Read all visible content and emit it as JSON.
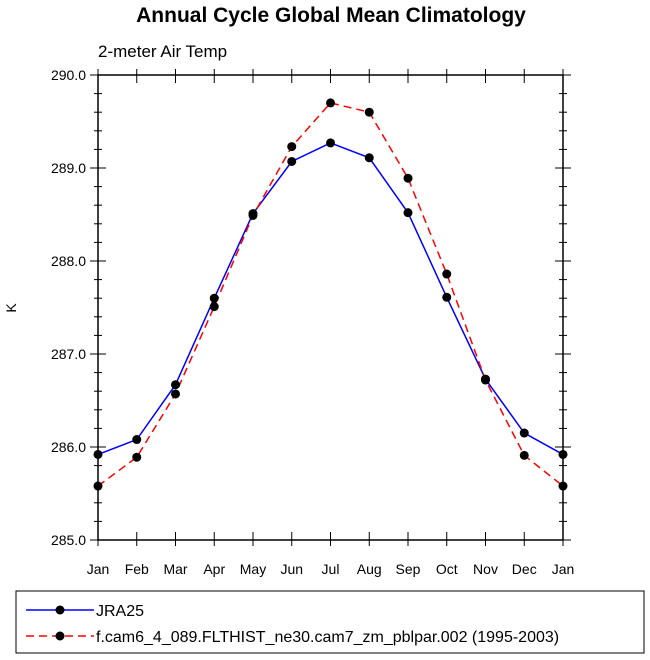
{
  "chart_data": {
    "type": "line",
    "title": "Annual Cycle Global Mean Climatology",
    "subtitle": "2-meter Air Temp",
    "xlabel": "",
    "ylabel": "K",
    "categories": [
      "Jan",
      "Feb",
      "Mar",
      "Apr",
      "May",
      "Jun",
      "Jul",
      "Aug",
      "Sep",
      "Oct",
      "Nov",
      "Dec",
      "Jan"
    ],
    "ylim": [
      285.0,
      290.0
    ],
    "yticks": [
      "285.0",
      "286.0",
      "287.0",
      "288.0",
      "289.0",
      "290.0"
    ],
    "grid": false,
    "legend_position": "bottom",
    "series": [
      {
        "name": "JRA25",
        "color": "#0000ff",
        "dash": "solid",
        "marker": "filled-circle",
        "values": [
          285.92,
          286.08,
          286.67,
          287.6,
          288.51,
          289.07,
          289.27,
          289.11,
          288.52,
          287.61,
          286.73,
          286.15,
          285.92
        ]
      },
      {
        "name": "f.cam6_4_089.FLTHIST_ne30.cam7_zm_pblpar.002 (1995-2003)",
        "color": "#ff0000",
        "dash": "dashed",
        "marker": "filled-circle",
        "values": [
          285.58,
          285.89,
          286.57,
          287.51,
          288.49,
          289.23,
          289.7,
          289.6,
          288.89,
          287.86,
          286.72,
          285.91,
          285.58
        ]
      }
    ]
  }
}
